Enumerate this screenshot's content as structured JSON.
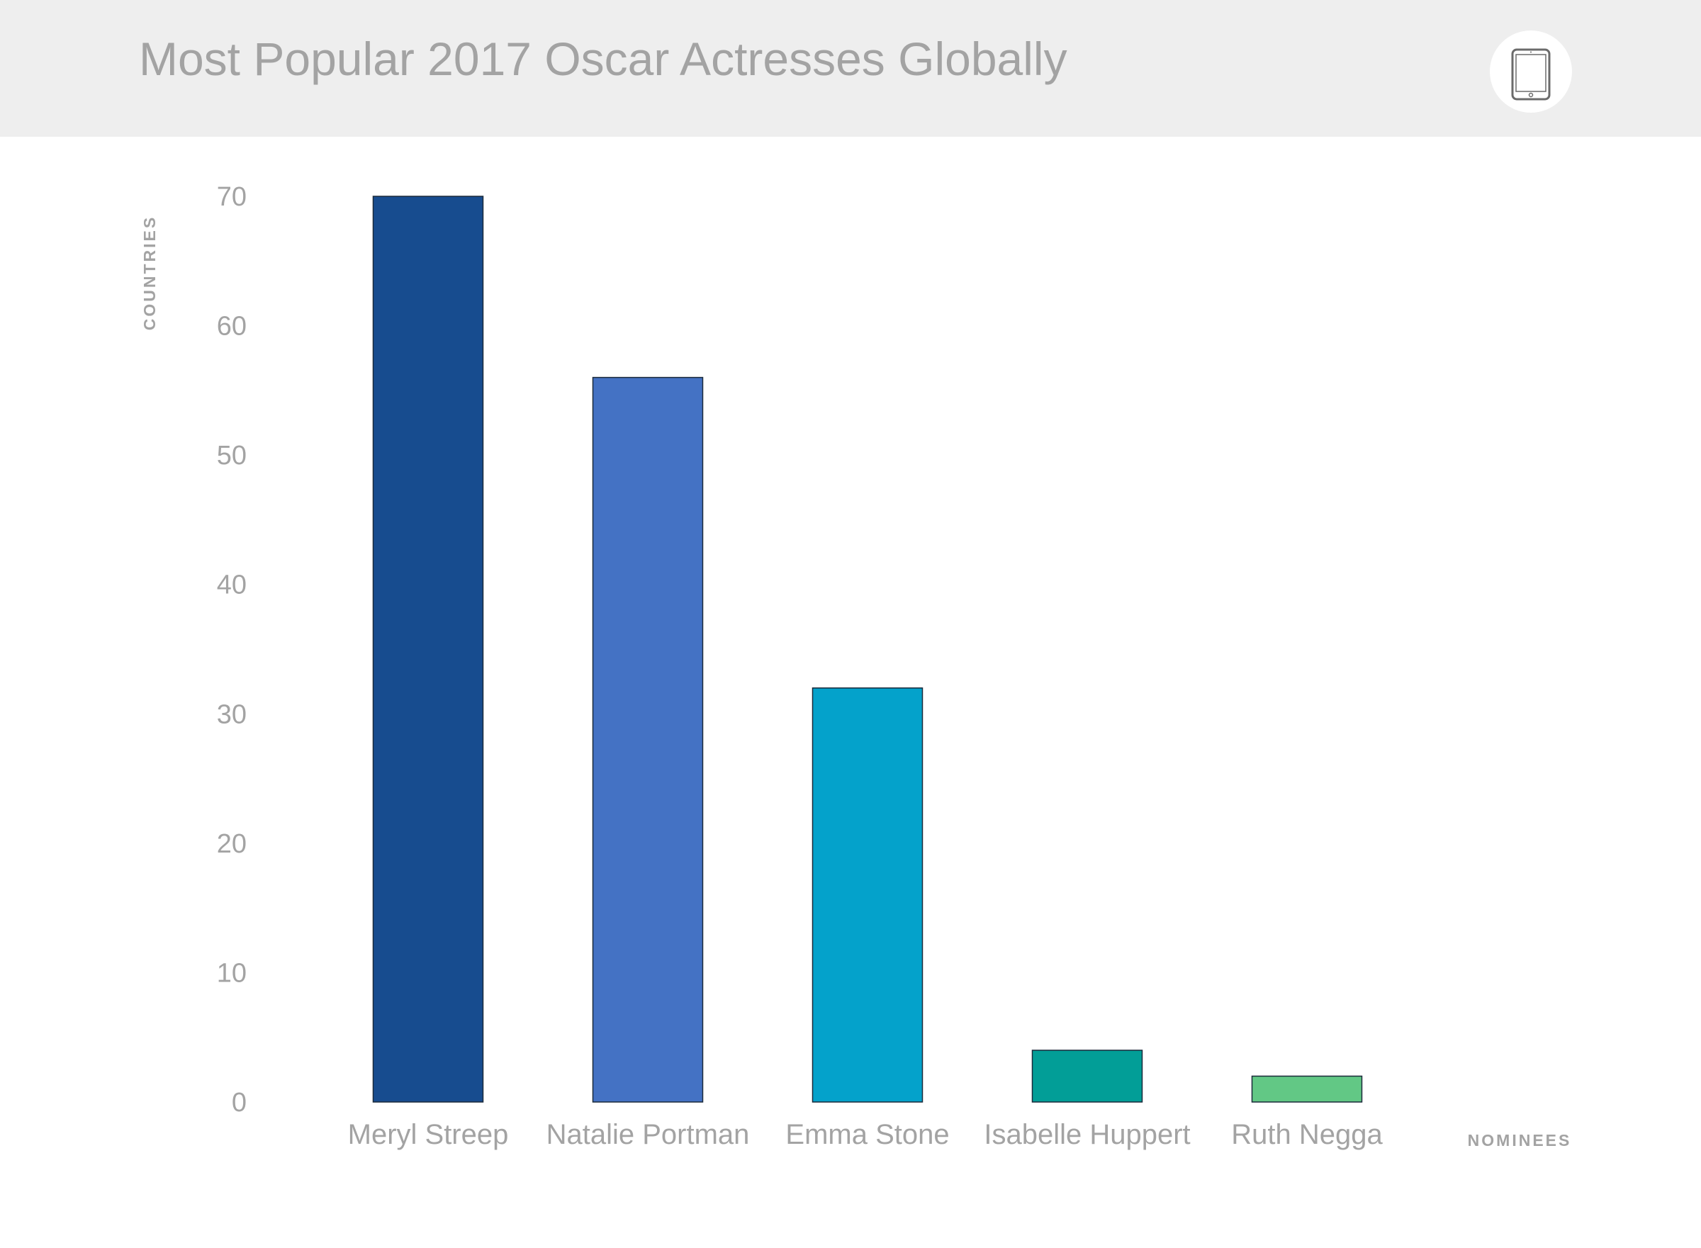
{
  "header": {
    "title": "Most Popular 2017 Oscar Actresses Globally",
    "device_icon": "tablet-icon"
  },
  "chart_data": {
    "type": "bar",
    "title": "Most Popular 2017 Oscar Actresses Globally",
    "xlabel": "NOMINEES",
    "ylabel": "COUNTRIES",
    "categories": [
      "Meryl Streep",
      "Natalie Portman",
      "Emma Stone",
      "Isabelle Huppert",
      "Ruth Negga"
    ],
    "values": [
      70,
      56,
      32,
      4,
      2
    ],
    "colors": [
      "#174c8f",
      "#4472c4",
      "#04a2cb",
      "#029e97",
      "#62c885"
    ],
    "ylim": [
      0,
      70
    ],
    "yticks": [
      0,
      10,
      20,
      30,
      40,
      50,
      60,
      70
    ],
    "grid": false,
    "legend": "none"
  }
}
